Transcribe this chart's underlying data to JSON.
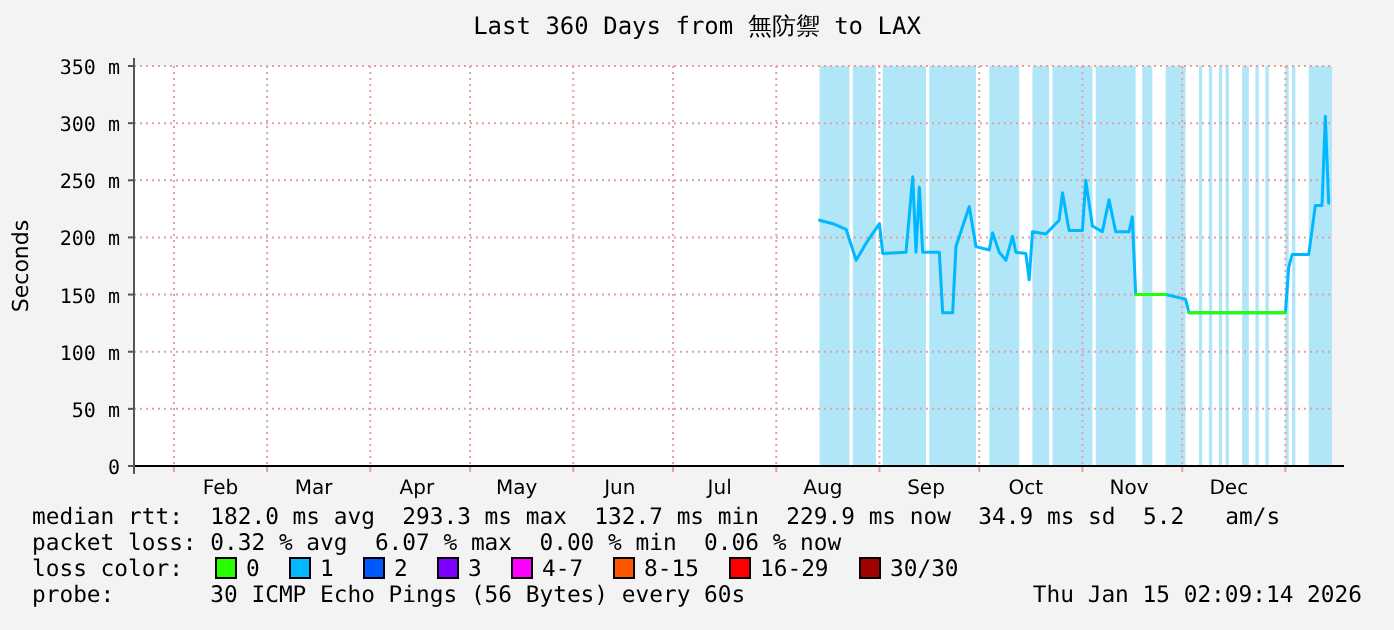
{
  "chart_data": {
    "type": "line",
    "title": "Last 360 Days from 無防禦 to LAX",
    "ylabel": "Seconds",
    "xlim": [
      "2025-01-20",
      "2026-01-15"
    ],
    "xticks": [
      {
        "value": "2025-02-01",
        "label": null
      },
      {
        "value": "2025-02-15",
        "label": "Feb"
      },
      {
        "value": "2025-03-01",
        "label": null
      },
      {
        "value": "2025-03-15",
        "label": "Mar"
      },
      {
        "value": "2025-04-01",
        "label": null
      },
      {
        "value": "2025-04-15",
        "label": "Apr"
      },
      {
        "value": "2025-05-01",
        "label": null
      },
      {
        "value": "2025-05-15",
        "label": "May"
      },
      {
        "value": "2025-06-01",
        "label": null
      },
      {
        "value": "2025-06-15",
        "label": "Jun"
      },
      {
        "value": "2025-07-01",
        "label": null
      },
      {
        "value": "2025-07-15",
        "label": "Jul"
      },
      {
        "value": "2025-08-01",
        "label": null
      },
      {
        "value": "2025-08-15",
        "label": "Aug"
      },
      {
        "value": "2025-09-01",
        "label": null
      },
      {
        "value": "2025-09-15",
        "label": "Sep"
      },
      {
        "value": "2025-10-01",
        "label": null
      },
      {
        "value": "2025-10-15",
        "label": "Oct"
      },
      {
        "value": "2025-11-01",
        "label": null
      },
      {
        "value": "2025-11-15",
        "label": "Nov"
      },
      {
        "value": "2025-12-01",
        "label": null
      },
      {
        "value": "2025-12-15",
        "label": "Dec"
      },
      {
        "value": "2026-01-01",
        "label": null
      }
    ],
    "ylim": [
      0,
      350
    ],
    "yticks": [
      0,
      {
        "value": 50,
        "label": "50 m"
      },
      {
        "value": 100,
        "label": "100 m"
      },
      {
        "value": 150,
        "label": "150 m"
      },
      {
        "value": 200,
        "label": "200 m"
      },
      {
        "value": 250,
        "label": "250 m"
      },
      {
        "value": 300,
        "label": "300 m"
      },
      {
        "value": 350,
        "label": "350 m"
      }
    ],
    "grid": true,
    "legend": "bottom",
    "legend_title": "loss color:",
    "x": [
      "2025-08-14",
      "2025-08-18",
      "2025-08-22",
      "2025-08-24",
      "2025-08-25",
      "2025-08-28",
      "2025-09-01",
      "2025-09-02",
      "2025-09-09",
      "2025-09-11",
      "2025-09-12",
      "2025-09-13",
      "2025-09-14",
      "2025-09-19",
      "2025-09-20",
      "2025-09-23",
      "2025-09-24",
      "2025-09-28",
      "2025-09-30",
      "2025-10-04",
      "2025-10-05",
      "2025-10-07",
      "2025-10-09",
      "2025-10-11",
      "2025-10-12",
      "2025-10-15",
      "2025-10-16",
      "2025-10-17",
      "2025-10-21",
      "2025-10-25",
      "2025-10-26",
      "2025-10-28",
      "2025-11-01",
      "2025-11-02",
      "2025-11-04",
      "2025-11-07",
      "2025-11-09",
      "2025-11-11",
      "2025-11-15",
      "2025-11-16",
      "2025-11-17",
      "2025-11-26",
      "2025-12-02",
      "2025-12-03",
      "2026-01-01",
      "2026-01-02",
      "2026-01-03",
      "2026-01-08",
      "2026-01-10",
      "2026-01-12",
      "2026-01-13",
      "2026-01-14"
    ],
    "series": [
      {
        "name": "1",
        "color": "#00b8ff",
        "values": [
          215,
          212,
          207,
          189,
          180,
          195,
          212,
          186,
          187,
          253,
          187,
          244,
          187,
          187,
          134,
          134,
          192,
          227,
          192,
          189,
          204,
          187,
          180,
          201,
          187,
          186,
          163,
          205,
          203,
          215,
          239,
          206,
          206,
          250,
          210,
          205,
          233,
          205,
          205,
          218,
          150,
          150,
          146,
          134,
          134,
          174,
          185,
          185,
          228,
          228,
          306,
          230
        ]
      },
      {
        "name": "0",
        "color": "#26ff00",
        "values": [
          null,
          null,
          null,
          null,
          null,
          null,
          null,
          null,
          null,
          null,
          null,
          null,
          null,
          null,
          null,
          null,
          null,
          null,
          null,
          null,
          null,
          null,
          null,
          null,
          null,
          null,
          null,
          null,
          null,
          null,
          null,
          null,
          null,
          null,
          null,
          null,
          null,
          null,
          null,
          null,
          150,
          150,
          null,
          134,
          134,
          null,
          null,
          null,
          null,
          null,
          null,
          null
        ]
      },
      {
        "name": "2",
        "color": "#0059ff",
        "values": [
          null,
          null,
          null,
          null,
          null,
          null,
          null,
          null,
          null,
          null,
          null,
          null,
          null,
          null,
          null,
          null,
          null,
          null,
          null,
          null,
          null,
          null,
          null,
          null,
          null,
          null,
          null,
          null,
          null,
          null,
          null,
          null,
          null,
          null,
          null,
          null,
          null,
          null,
          null,
          null,
          null,
          null,
          null,
          null,
          null,
          null,
          null,
          null,
          null,
          null,
          null,
          null
        ]
      },
      {
        "name": "3",
        "color": "#7e00ff",
        "values": [
          null,
          null,
          null,
          null,
          null,
          null,
          null,
          null,
          null,
          null,
          null,
          null,
          null,
          null,
          null,
          null,
          null,
          null,
          null,
          null,
          null,
          null,
          null,
          null,
          null,
          null,
          null,
          null,
          null,
          null,
          null,
          null,
          null,
          null,
          null,
          null,
          null,
          null,
          null,
          null,
          null,
          null,
          null,
          null,
          null,
          null,
          null,
          null,
          null,
          null,
          null,
          null
        ]
      },
      {
        "name": "4-7",
        "color": "#ff00ff",
        "values": [
          null,
          null,
          null,
          null,
          null,
          null,
          null,
          null,
          null,
          null,
          null,
          null,
          null,
          null,
          null,
          null,
          null,
          null,
          null,
          null,
          null,
          null,
          null,
          null,
          null,
          null,
          null,
          null,
          null,
          null,
          null,
          null,
          null,
          null,
          null,
          null,
          null,
          null,
          null,
          null,
          null,
          null,
          null,
          null,
          null,
          null,
          null,
          null,
          null,
          null,
          null,
          null
        ]
      },
      {
        "name": "8-15",
        "color": "#ff5500",
        "values": [
          null,
          null,
          null,
          null,
          null,
          null,
          null,
          null,
          null,
          null,
          null,
          null,
          null,
          null,
          null,
          null,
          null,
          null,
          null,
          null,
          null,
          null,
          null,
          null,
          null,
          null,
          null,
          null,
          null,
          null,
          null,
          null,
          null,
          null,
          null,
          null,
          null,
          null,
          null,
          null,
          null,
          null,
          null,
          null,
          null,
          null,
          null,
          null,
          null,
          null,
          null,
          null
        ]
      },
      {
        "name": "16-29",
        "color": "#ff0000",
        "values": [
          null,
          null,
          null,
          null,
          null,
          null,
          null,
          null,
          null,
          null,
          null,
          null,
          null,
          null,
          null,
          null,
          null,
          null,
          null,
          null,
          null,
          null,
          null,
          null,
          null,
          null,
          null,
          null,
          null,
          null,
          null,
          null,
          null,
          null,
          null,
          null,
          null,
          null,
          null,
          null,
          null,
          null,
          null,
          null,
          null,
          null,
          null,
          null,
          null,
          null,
          null,
          null
        ]
      },
      {
        "name": "30/30",
        "color": "#a10000",
        "values": [
          null,
          null,
          null,
          null,
          null,
          null,
          null,
          null,
          null,
          null,
          null,
          null,
          null,
          null,
          null,
          null,
          null,
          null,
          null,
          null,
          null,
          null,
          null,
          null,
          null,
          null,
          null,
          null,
          null,
          null,
          null,
          null,
          null,
          null,
          null,
          null,
          null,
          null,
          null,
          null,
          null,
          null,
          null,
          null,
          null,
          null,
          null,
          null,
          null,
          null,
          null,
          null
        ]
      }
    ],
    "bands": [
      {
        "axis": "x",
        "from": "2025-08-14",
        "to": "2025-08-23",
        "color": "#b0e6f8"
      },
      {
        "axis": "x",
        "from": "2025-08-24",
        "to": "2025-08-31",
        "color": "#b0e6f8"
      },
      {
        "axis": "x",
        "from": "2025-09-02",
        "to": "2025-09-15",
        "color": "#b0e6f8"
      },
      {
        "axis": "x",
        "from": "2025-09-16",
        "to": "2025-09-30",
        "color": "#b0e6f8"
      },
      {
        "axis": "x",
        "from": "2025-10-04",
        "to": "2025-10-13",
        "color": "#b0e6f8"
      },
      {
        "axis": "x",
        "from": "2025-10-17",
        "to": "2025-10-22",
        "color": "#b0e6f8"
      },
      {
        "axis": "x",
        "from": "2025-10-23",
        "to": "2025-11-04",
        "color": "#b0e6f8"
      },
      {
        "axis": "x",
        "from": "2025-11-05",
        "to": "2025-11-17",
        "color": "#b0e6f8"
      },
      {
        "axis": "x",
        "from": "2025-11-19",
        "to": "2025-11-22",
        "color": "#b0e6f8"
      },
      {
        "axis": "x",
        "from": "2025-11-26",
        "to": "2025-12-02",
        "color": "#b0e6f8"
      },
      {
        "axis": "x",
        "from": "2025-12-06",
        "to": "2025-12-07",
        "color": "#b0e6f8"
      },
      {
        "axis": "x",
        "from": "2025-12-09",
        "to": "2025-12-10",
        "color": "#b0e6f8"
      },
      {
        "axis": "x",
        "from": "2025-12-12",
        "to": "2025-12-13",
        "color": "#b0e6f8"
      },
      {
        "axis": "x",
        "from": "2025-12-14",
        "to": "2025-12-15",
        "color": "#b0e6f8"
      },
      {
        "axis": "x",
        "from": "2025-12-19",
        "to": "2025-12-21",
        "color": "#b0e6f8"
      },
      {
        "axis": "x",
        "from": "2025-12-23",
        "to": "2025-12-24",
        "color": "#b0e6f8"
      },
      {
        "axis": "x",
        "from": "2025-12-26",
        "to": "2025-12-27",
        "color": "#b0e6f8"
      },
      {
        "axis": "x",
        "from": "2026-01-01",
        "to": "2026-01-02",
        "color": "#b0e6f8"
      },
      {
        "axis": "x",
        "from": "2026-01-03",
        "to": "2026-01-04",
        "color": "#b0e6f8"
      },
      {
        "axis": "x",
        "from": "2026-01-08",
        "to": "2026-01-15",
        "color": "#b0e6f8"
      }
    ],
    "annotations": [
      "median rtt:  182.0 ms avg  293.3 ms max  132.7 ms min  229.9 ms now  34.9 ms sd  5.2   am/s",
      "packet loss: 0.32 % avg  6.07 % max  0.00 % min  0.06 % now",
      "probe:       30 ICMP Echo Pings (56 Bytes) every 60s",
      "Thu Jan 15 02:09:14 2026"
    ]
  }
}
